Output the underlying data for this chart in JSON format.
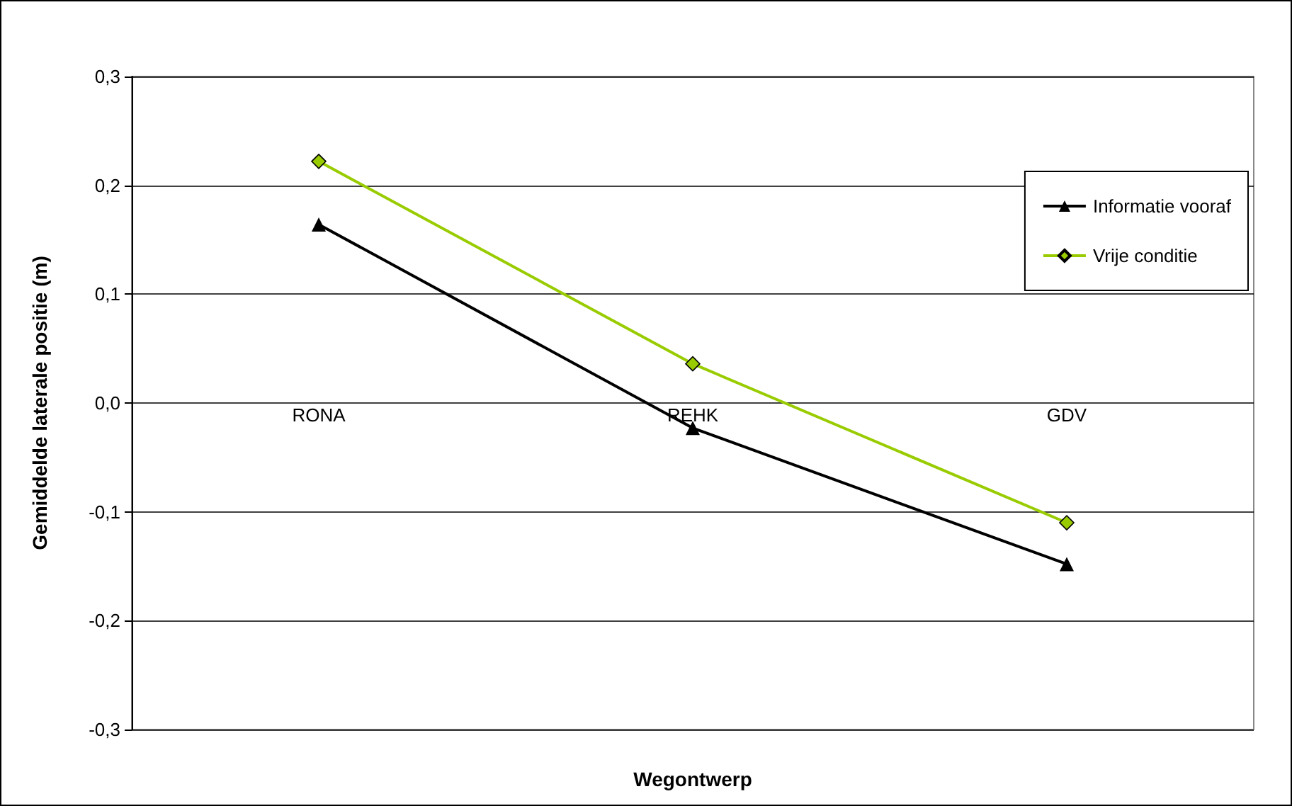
{
  "chart_data": {
    "type": "line",
    "xlabel": "Wegontwerp",
    "ylabel": "Gemiddelde laterale positie (m)",
    "categories": [
      "RONA",
      "REHK",
      "GDV"
    ],
    "series": [
      {
        "name": "Informatie vooraf",
        "color": "#000000",
        "marker": "triangle",
        "values": [
          0.164,
          -0.023,
          -0.148
        ]
      },
      {
        "name": "Vrije conditie",
        "color": "#99cc00",
        "marker": "diamond",
        "values": [
          0.222,
          0.036,
          -0.11
        ]
      }
    ],
    "ylim": [
      -0.3,
      0.3
    ],
    "yticks": [
      {
        "value": -0.3,
        "label": "-0,3"
      },
      {
        "value": -0.2,
        "label": "-0,2"
      },
      {
        "value": -0.1,
        "label": "-0,1"
      },
      {
        "value": 0,
        "label": "0,0"
      },
      {
        "value": 0.1,
        "label": "0,1"
      },
      {
        "value": 0.2,
        "label": "0,2"
      },
      {
        "value": 0.3,
        "label": "0,3"
      }
    ],
    "grid": "y",
    "legend": "top right"
  }
}
